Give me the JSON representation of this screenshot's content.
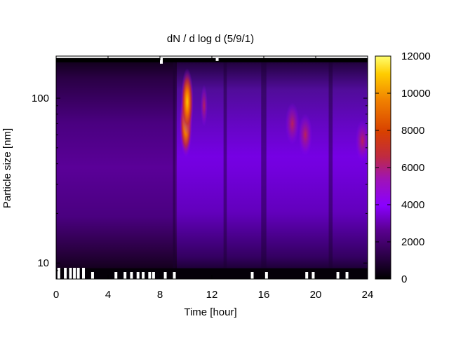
{
  "chart_data": {
    "type": "heatmap",
    "title": "dN / d log d (5/9/1)",
    "xlabel": "Time [hour]",
    "ylabel": "Particle size [nm]",
    "xlim": [
      0,
      24
    ],
    "ylim": [
      8,
      180
    ],
    "y_scale": "log",
    "x_ticks": [
      0,
      4,
      8,
      12,
      16,
      20,
      24
    ],
    "x_tick_labels": [
      "0",
      "4",
      "8",
      "12",
      "16",
      "20",
      "24"
    ],
    "y_ticks": [
      10,
      100
    ],
    "y_tick_labels": [
      "10",
      "100"
    ],
    "colorbar": {
      "min": 0,
      "max": 12000,
      "ticks": [
        0,
        2000,
        4000,
        6000,
        8000,
        10000,
        12000
      ],
      "tick_labels": [
        "0",
        "2000",
        "4000",
        "6000",
        "8000",
        "10000",
        "12000"
      ],
      "colormap": [
        "#000000",
        "#3a0060",
        "#7000d8",
        "#b01a7a",
        "#e05a00",
        "#ffd000",
        "#ffff60"
      ]
    },
    "grid": false,
    "features": [
      {
        "time": 10.0,
        "diameter_nm": 70,
        "value": 10500
      },
      {
        "time": 10.1,
        "diameter_nm": 95,
        "value": 11000
      },
      {
        "time": 11.4,
        "diameter_nm": 90,
        "value": 4800
      },
      {
        "time": 18.2,
        "diameter_nm": 70,
        "value": 4200
      },
      {
        "time": 19.2,
        "diameter_nm": 60,
        "value": 4300
      },
      {
        "time": 23.6,
        "diameter_nm": 55,
        "value": 4100
      }
    ]
  }
}
